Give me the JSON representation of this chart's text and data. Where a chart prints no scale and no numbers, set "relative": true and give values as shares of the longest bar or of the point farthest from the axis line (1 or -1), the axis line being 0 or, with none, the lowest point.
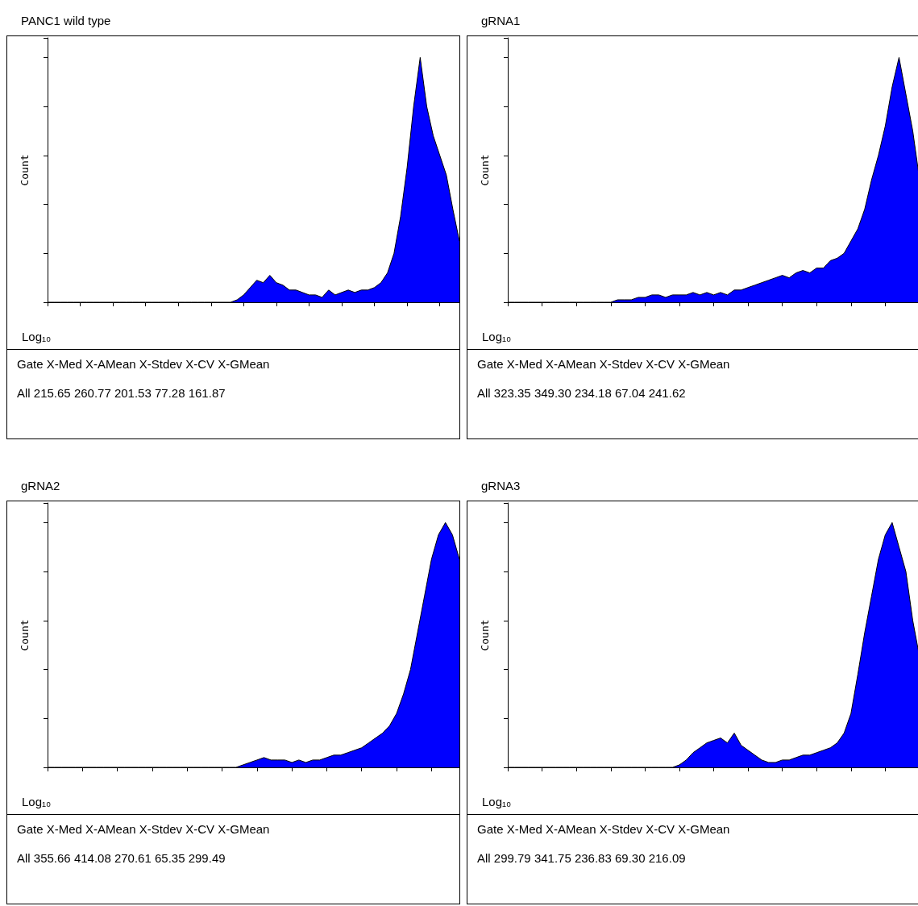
{
  "chart_data": [
    {
      "type": "area",
      "title": "PANC1 wild type",
      "xlabel": "Log₁₀",
      "ylabel": "Count",
      "relative": true,
      "tick_labels": false,
      "grid": false,
      "color": "#0000ff",
      "categories": [
        null,
        null,
        null,
        null,
        null,
        null,
        null,
        null,
        null,
        null,
        null,
        null,
        null,
        null,
        null,
        null,
        null,
        null,
        null,
        null,
        null,
        null,
        null,
        null,
        null,
        null,
        null,
        null,
        null,
        null,
        null,
        null,
        null,
        null,
        null,
        null,
        null,
        null,
        null,
        null,
        null,
        null,
        null,
        null,
        null,
        null,
        null,
        null,
        null,
        null,
        null,
        null,
        null,
        null,
        null,
        null,
        null,
        null,
        null,
        null,
        null,
        null,
        null,
        null
      ],
      "values": [
        0,
        0,
        0,
        0,
        0,
        0,
        0,
        0,
        0,
        0,
        0,
        0,
        0,
        0,
        0,
        0,
        0,
        0,
        0,
        0,
        0,
        0,
        0,
        0,
        0,
        0,
        0,
        0,
        0,
        0.01,
        0.03,
        0.06,
        0.09,
        0.08,
        0.11,
        0.08,
        0.07,
        0.05,
        0.05,
        0.04,
        0.03,
        0.03,
        0.02,
        0.05,
        0.03,
        0.04,
        0.05,
        0.04,
        0.05,
        0.05,
        0.06,
        0.08,
        0.12,
        0.2,
        0.35,
        0.55,
        0.8,
        1.0,
        0.8,
        0.68,
        0.6,
        0.52,
        0.38,
        0.25
      ],
      "annotations": [
        "Gate X-Med X-AMean X-Stdev X-CV X-GMean",
        "All 215.65 260.77 201.53 77.28 161.87"
      ]
    },
    {
      "type": "area",
      "title": "gRNA1",
      "xlabel": "Log₁₀",
      "ylabel": "Count",
      "relative": true,
      "tick_labels": false,
      "grid": false,
      "color": "#0000ff",
      "categories": [
        null,
        null,
        null,
        null,
        null,
        null,
        null,
        null,
        null,
        null,
        null,
        null,
        null,
        null,
        null,
        null,
        null,
        null,
        null,
        null,
        null,
        null,
        null,
        null,
        null,
        null,
        null,
        null,
        null,
        null,
        null,
        null,
        null,
        null,
        null,
        null,
        null,
        null,
        null,
        null,
        null,
        null,
        null,
        null,
        null,
        null,
        null,
        null,
        null,
        null,
        null,
        null,
        null,
        null,
        null,
        null,
        null,
        null,
        null,
        null,
        null
      ],
      "values": [
        0,
        0,
        0,
        0,
        0,
        0,
        0,
        0,
        0,
        0,
        0,
        0,
        0,
        0,
        0,
        0,
        0.01,
        0.01,
        0.01,
        0.02,
        0.02,
        0.03,
        0.03,
        0.02,
        0.03,
        0.03,
        0.03,
        0.04,
        0.03,
        0.04,
        0.03,
        0.04,
        0.03,
        0.05,
        0.05,
        0.06,
        0.07,
        0.08,
        0.09,
        0.1,
        0.11,
        0.1,
        0.12,
        0.13,
        0.12,
        0.14,
        0.14,
        0.17,
        0.18,
        0.2,
        0.25,
        0.3,
        0.38,
        0.5,
        0.6,
        0.72,
        0.88,
        1.0,
        0.85,
        0.7,
        0.5
      ],
      "annotations": [
        "Gate X-Med X-AMean X-Stdev X-CV X-GMean",
        "All 323.35 349.30 234.18 67.04 241.62"
      ]
    },
    {
      "type": "area",
      "title": "gRNA2",
      "xlabel": "Log₁₀",
      "ylabel": "Count",
      "relative": true,
      "tick_labels": false,
      "grid": false,
      "color": "#0000ff",
      "categories": [
        null,
        null,
        null,
        null,
        null,
        null,
        null,
        null,
        null,
        null,
        null,
        null,
        null,
        null,
        null,
        null,
        null,
        null,
        null,
        null,
        null,
        null,
        null,
        null,
        null,
        null,
        null,
        null,
        null,
        null,
        null,
        null,
        null,
        null,
        null,
        null,
        null,
        null,
        null,
        null,
        null,
        null,
        null,
        null,
        null,
        null,
        null,
        null,
        null,
        null,
        null,
        null,
        null,
        null,
        null,
        null,
        null,
        null,
        null,
        null
      ],
      "values": [
        0,
        0,
        0,
        0,
        0,
        0,
        0,
        0,
        0,
        0,
        0,
        0,
        0,
        0,
        0,
        0,
        0,
        0,
        0,
        0,
        0,
        0,
        0,
        0,
        0,
        0,
        0,
        0,
        0.01,
        0.02,
        0.03,
        0.04,
        0.03,
        0.03,
        0.03,
        0.02,
        0.03,
        0.02,
        0.03,
        0.03,
        0.04,
        0.05,
        0.05,
        0.06,
        0.07,
        0.08,
        0.1,
        0.12,
        0.14,
        0.17,
        0.22,
        0.3,
        0.4,
        0.55,
        0.7,
        0.85,
        0.95,
        1.0,
        0.95,
        0.85
      ],
      "annotations": [
        "Gate X-Med X-AMean X-Stdev X-CV X-GMean",
        "All 355.66 414.08 270.61 65.35 299.49"
      ]
    },
    {
      "type": "area",
      "title": "gRNA3",
      "xlabel": "Log₁₀",
      "ylabel": "Count",
      "relative": true,
      "tick_labels": false,
      "grid": false,
      "color": "#0000ff",
      "categories": [
        null,
        null,
        null,
        null,
        null,
        null,
        null,
        null,
        null,
        null,
        null,
        null,
        null,
        null,
        null,
        null,
        null,
        null,
        null,
        null,
        null,
        null,
        null,
        null,
        null,
        null,
        null,
        null,
        null,
        null,
        null,
        null,
        null,
        null,
        null,
        null,
        null,
        null,
        null,
        null,
        null,
        null,
        null,
        null,
        null,
        null,
        null,
        null,
        null,
        null,
        null,
        null,
        null,
        null,
        null,
        null,
        null,
        null,
        null,
        null,
        null
      ],
      "values": [
        0,
        0,
        0,
        0,
        0,
        0,
        0,
        0,
        0,
        0,
        0,
        0,
        0,
        0,
        0,
        0,
        0,
        0,
        0,
        0,
        0,
        0,
        0,
        0,
        0,
        0.01,
        0.03,
        0.06,
        0.08,
        0.1,
        0.11,
        0.12,
        0.1,
        0.14,
        0.09,
        0.07,
        0.05,
        0.03,
        0.02,
        0.02,
        0.03,
        0.03,
        0.04,
        0.05,
        0.05,
        0.06,
        0.07,
        0.08,
        0.1,
        0.14,
        0.22,
        0.38,
        0.55,
        0.7,
        0.85,
        0.95,
        1.0,
        0.9,
        0.8,
        0.6,
        0.45
      ],
      "annotations": [
        "Gate X-Med X-AMean X-Stdev X-CV X-GMean",
        "All 299.79 341.75 236.83 69.30 216.09"
      ]
    }
  ]
}
